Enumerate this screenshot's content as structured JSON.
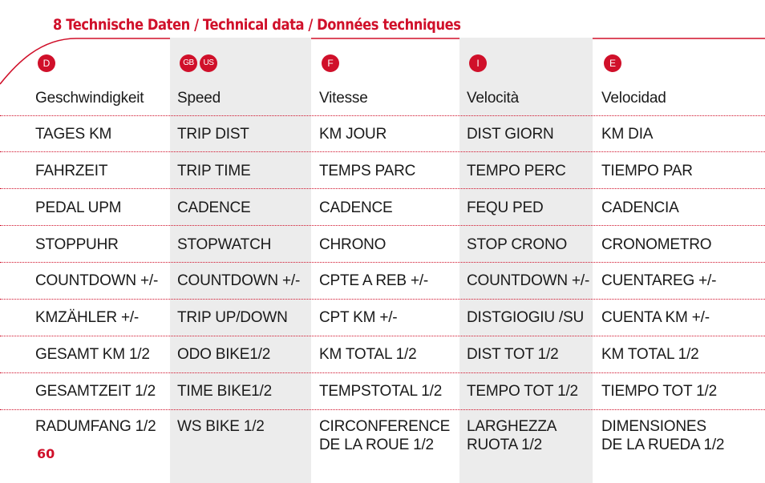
{
  "heading": "8 Technische Daten / Technical data / Données techniques",
  "page_number": "60",
  "columns": [
    {
      "flags": [
        "D"
      ],
      "header": "Geschwindigkeit",
      "rows": [
        "TAGES KM",
        "FAHRZEIT",
        "PEDAL UPM",
        "STOPPUHR",
        "COUNTDOWN +/-",
        "KMZÄHLER +/-",
        "GESAMT KM 1/2",
        "GESAMTZEIT 1/2",
        [
          "RADUMFANG 1/2"
        ]
      ]
    },
    {
      "flags": [
        "GB",
        "US"
      ],
      "header": "Speed",
      "rows": [
        "TRIP DIST",
        "TRIP TIME",
        "CADENCE",
        "STOPWATCH",
        "COUNTDOWN +/-",
        "TRIP UP/DOWN",
        "ODO BIKE1/2",
        "TIME BIKE1/2",
        [
          "WS BIKE 1/2"
        ]
      ]
    },
    {
      "flags": [
        "F"
      ],
      "header": "Vitesse",
      "rows": [
        "KM JOUR",
        "TEMPS PARC",
        "CADENCE",
        "CHRONO",
        "CPTE A REB +/-",
        "CPT KM +/-",
        "KM TOTAL 1/2",
        "TEMPSTOTAL 1/2",
        [
          "CIRCONFERENCE",
          "DE LA ROUE 1/2"
        ]
      ]
    },
    {
      "flags": [
        "I"
      ],
      "header": "Velocità",
      "rows": [
        "DIST GIORN",
        "TEMPO PERC",
        "FEQU PED",
        "STOP CRONO",
        "COUNTDOWN +/-",
        "DISTGIOGIU /SU",
        "DIST TOT 1/2",
        "TEMPO TOT 1/2",
        [
          "LARGHEZZA",
          "RUOTA 1/2"
        ]
      ]
    },
    {
      "flags": [
        "E"
      ],
      "header": "Velocidad",
      "rows": [
        "KM DIA",
        "TIEMPO PAR",
        "CADENCIA",
        "CRONOMETRO",
        "CUENTAREG +/-",
        "CUENTA KM +/-",
        "KM TOTAL 1/2",
        "TIEMPO TOT 1/2",
        [
          "DIMENSIONES",
          "DE LA RUEDA 1/2"
        ]
      ]
    }
  ],
  "colors": {
    "accent": "#d0102a",
    "stripe": "#ececec"
  }
}
